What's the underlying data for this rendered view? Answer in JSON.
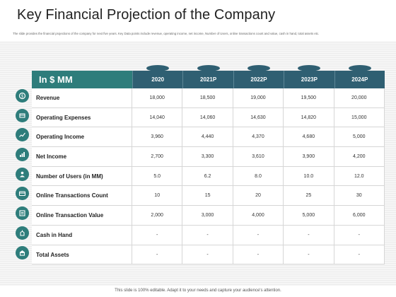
{
  "title": "Key Financial Projection of the Company",
  "subtitle": "The slide provides the financial projections of the company for next five years. Key Data points include revenue, operating income, net income, Number of Users, online transactions count and value, cash in hand, total assets etc.",
  "table": {
    "corner_label": "In $ MM",
    "columns": [
      "2020",
      "2021P",
      "2022P",
      "2023P",
      "2024P"
    ],
    "rows": [
      {
        "label": "Revenue",
        "icon": "revenue-icon",
        "values": [
          "18,000",
          "18,500",
          "19,000",
          "19,500",
          "20,000"
        ]
      },
      {
        "label": "Operating Expenses",
        "icon": "expenses-icon",
        "values": [
          "14,040",
          "14,060",
          "14,630",
          "14,820",
          "15,000"
        ]
      },
      {
        "label": "Operating Income",
        "icon": "income-icon",
        "values": [
          "3,960",
          "4,440",
          "4,370",
          "4,680",
          "5,000"
        ]
      },
      {
        "label": "Net Income",
        "icon": "net-income-icon",
        "values": [
          "2,700",
          "3,300",
          "3,610",
          "3,900",
          "4,200"
        ]
      },
      {
        "label": "Number of Users (in MM)",
        "icon": "users-icon",
        "values": [
          "5.0",
          "6.2",
          "8.0",
          "10.0",
          "12.0"
        ]
      },
      {
        "label": "Online Transactions Count",
        "icon": "transactions-icon",
        "values": [
          "10",
          "15",
          "20",
          "25",
          "30"
        ]
      },
      {
        "label": "Online Transaction Value",
        "icon": "transaction-value-icon",
        "values": [
          "2,000",
          "3,000",
          "4,000",
          "5,000",
          "6,000"
        ]
      },
      {
        "label": "Cash in Hand",
        "icon": "cash-icon",
        "values": [
          "-",
          "-",
          "-",
          "-",
          "-"
        ]
      },
      {
        "label": "Total Assets",
        "icon": "assets-icon",
        "values": [
          "-",
          "-",
          "-",
          "-",
          "-"
        ]
      }
    ]
  },
  "footer": "This slide is 100% editable. Adapt it to your needs and capture your audience's attention.",
  "colors": {
    "accent_teal": "#2e7d7b",
    "header_blue": "#2f5f72"
  }
}
